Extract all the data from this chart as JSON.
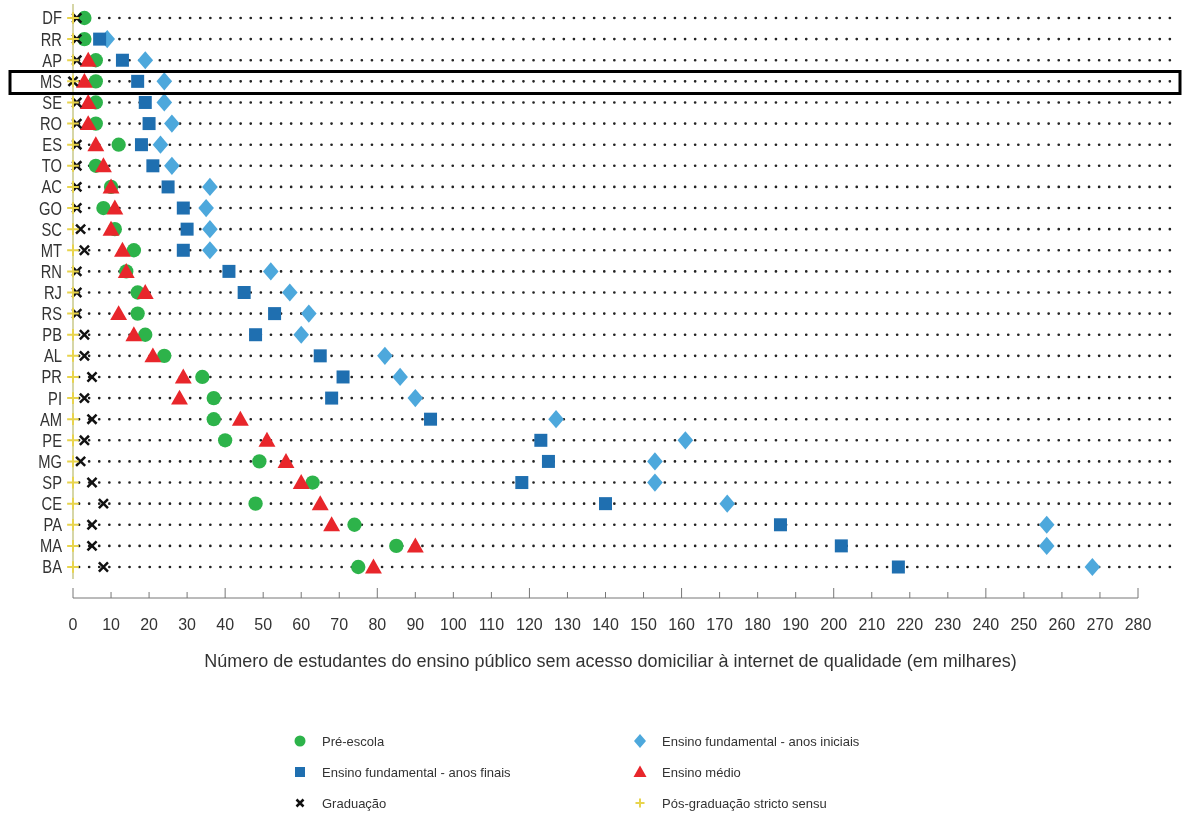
{
  "chart_data": {
    "type": "scatter",
    "orientation": "horizontal",
    "xlabel": "Número de estudantes do ensino público sem acesso domiciliar à internet de qualidade (em milhares)",
    "categories": [
      "DF",
      "RR",
      "AP",
      "MS",
      "SE",
      "RO",
      "ES",
      "TO",
      "AC",
      "GO",
      "SC",
      "MT",
      "RN",
      "RJ",
      "RS",
      "PB",
      "AL",
      "PR",
      "PI",
      "AM",
      "PE",
      "MG",
      "SP",
      "CE",
      "PA",
      "MA",
      "BA"
    ],
    "series": [
      {
        "name": "Pré-escola",
        "color": "#2db34a",
        "marker": "circle",
        "values": [
          3,
          3,
          6,
          6,
          6,
          6,
          12,
          6,
          10,
          8,
          11,
          16,
          14,
          17,
          17,
          19,
          24,
          34,
          37,
          37,
          40,
          49,
          63,
          48,
          74,
          85,
          75
        ]
      },
      {
        "name": "Ensino fundamental - anos iniciais",
        "color": "#4da8dc",
        "marker": "diamond",
        "values": [
          null,
          9,
          19,
          24,
          24,
          26,
          23,
          26,
          36,
          35,
          36,
          36,
          52,
          57,
          62,
          60,
          82,
          86,
          90,
          127,
          161,
          153,
          153,
          172,
          256,
          256,
          268
        ]
      },
      {
        "name": "Ensino fundamental - anos finais",
        "color": "#1f6fb0",
        "marker": "square",
        "values": [
          null,
          7,
          13,
          17,
          19,
          20,
          18,
          21,
          25,
          29,
          30,
          29,
          41,
          45,
          53,
          48,
          65,
          71,
          68,
          94,
          123,
          125,
          118,
          140,
          186,
          202,
          217
        ]
      },
      {
        "name": "Ensino médio",
        "color": "#e8262b",
        "marker": "triangle",
        "values": [
          null,
          null,
          4,
          3,
          4,
          4,
          6,
          8,
          10,
          11,
          10,
          13,
          14,
          19,
          12,
          16,
          21,
          29,
          28,
          44,
          51,
          56,
          60,
          65,
          68,
          90,
          79
        ]
      },
      {
        "name": "Graduação",
        "color": "#111111",
        "marker": "cross",
        "values": [
          1,
          1,
          1,
          0,
          1,
          1,
          1,
          1,
          1,
          1,
          2,
          3,
          1,
          1,
          1,
          3,
          3,
          5,
          3,
          5,
          3,
          2,
          5,
          8,
          5,
          5,
          8
        ]
      },
      {
        "name": "Pós-graduação stricto sensu",
        "color": "#e8d44d",
        "marker": "plus",
        "values": [
          0,
          0,
          0,
          0,
          0,
          0,
          0,
          0,
          0,
          0,
          0,
          0,
          0,
          0,
          0,
          0,
          0,
          0,
          0,
          0,
          0,
          0,
          0,
          0,
          0,
          0,
          0
        ]
      }
    ],
    "xlim": [
      0,
      280
    ],
    "xticks": [
      0,
      10,
      20,
      30,
      40,
      50,
      60,
      70,
      80,
      90,
      100,
      110,
      120,
      130,
      140,
      150,
      160,
      170,
      180,
      190,
      200,
      210,
      220,
      230,
      240,
      250,
      260,
      270,
      280
    ],
    "grid": "y",
    "legend": "bottom"
  }
}
